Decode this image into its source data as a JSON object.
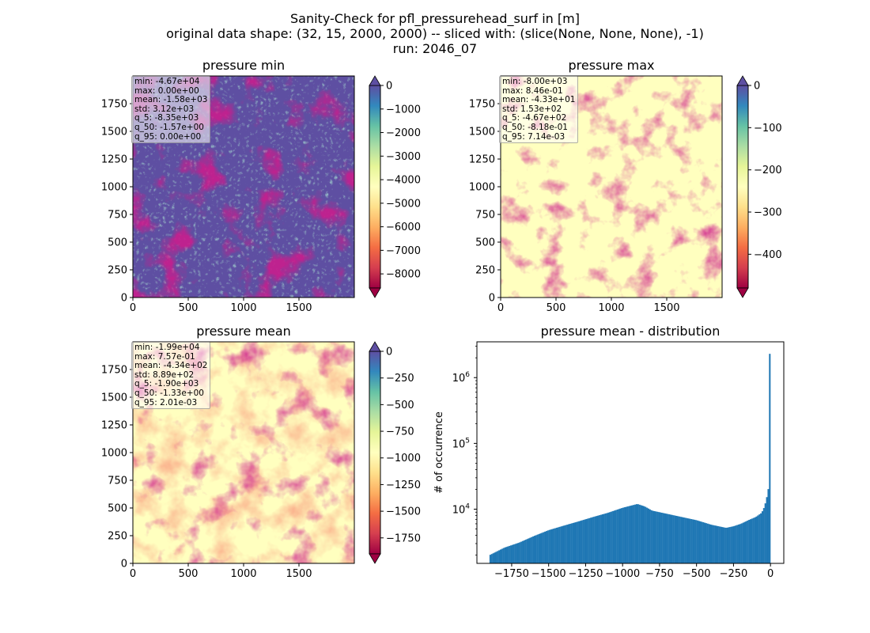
{
  "figure": {
    "title_lines": [
      "Sanity-Check for pfl_pressurehead_surf in [m]",
      "original data shape: (32, 15, 2000, 2000) -- sliced with: (slice(None, None, None), -1)",
      "run: 2046_07"
    ]
  },
  "chart_data": [
    {
      "type": "heatmap",
      "title": "pressure min",
      "xlim": [
        0,
        2000
      ],
      "ylim": [
        0,
        2000
      ],
      "xticks": [
        0,
        500,
        1000,
        1500
      ],
      "yticks": [
        0,
        250,
        500,
        750,
        1000,
        1250,
        1500,
        1750
      ],
      "colormap": "Spectral",
      "colorbar": {
        "range": [
          -8600,
          0
        ],
        "ticks": [
          0,
          -1000,
          -2000,
          -3000,
          -4000,
          -5000,
          -6000,
          -7000,
          -8000
        ],
        "extend": "both"
      },
      "stats": [
        "min: -4.67e+04",
        "max: 0.00e+00",
        "mean: -1.58e+03",
        "std: 3.12e+03",
        "q_5: -8.35e+03",
        "q_50: -1.57e+00",
        "q_95: 0.00e+00"
      ]
    },
    {
      "type": "heatmap",
      "title": "pressure max",
      "xlim": [
        0,
        2000
      ],
      "ylim": [
        0,
        2000
      ],
      "xticks": [
        0,
        500,
        1000,
        1500
      ],
      "yticks": [
        0,
        250,
        500,
        750,
        1000,
        1250,
        1500,
        1750
      ],
      "colormap": "Spectral",
      "colorbar": {
        "range": [
          -480,
          0
        ],
        "ticks": [
          0,
          -100,
          -200,
          -300,
          -400
        ],
        "extend": "both"
      },
      "stats": [
        "min: -8.00e+03",
        "max: 8.46e-01",
        "mean: -4.33e+01",
        "std: 1.53e+02",
        "q_5: -4.67e+02",
        "q_50: -8.18e-01",
        "q_95: 7.14e-03"
      ]
    },
    {
      "type": "heatmap",
      "title": "pressure mean",
      "xlim": [
        0,
        2000
      ],
      "ylim": [
        0,
        2000
      ],
      "xticks": [
        0,
        500,
        1000,
        1500
      ],
      "yticks": [
        0,
        250,
        500,
        750,
        1000,
        1250,
        1500,
        1750
      ],
      "colormap": "Spectral",
      "colorbar": {
        "range": [
          -1900,
          0
        ],
        "ticks": [
          0,
          -250,
          -500,
          -750,
          -1000,
          -1250,
          -1500,
          -1750
        ],
        "extend": "both"
      },
      "stats": [
        "min: -1.99e+04",
        "max: 7.57e-01",
        "mean: -4.34e+02",
        "std: 8.89e+02",
        "q_5: -1.90e+03",
        "q_50: -1.33e+00",
        "q_95: 2.01e-03"
      ]
    },
    {
      "type": "bar",
      "title": "pressure mean - distribution",
      "ylabel": "# of occurrence",
      "xlabel": "",
      "yscale": "log",
      "xlim": [
        -1985,
        90
      ],
      "ylim": [
        1500,
        3500000
      ],
      "xticks": [
        -1750,
        -1500,
        -1250,
        -1000,
        -750,
        -500,
        -250,
        0
      ],
      "xtick_labels": [
        "−1750",
        "−1500",
        "−1250",
        "−1000",
        "−750",
        "−500",
        "−250",
        "0"
      ],
      "yticks": [
        10000,
        100000,
        1000000
      ],
      "color": "#1f77b4",
      "bin_edges_range": [
        -1900,
        0
      ],
      "bin_width": 10,
      "profile": [
        [
          -1900,
          2000
        ],
        [
          -1800,
          2600
        ],
        [
          -1700,
          3100
        ],
        [
          -1600,
          3900
        ],
        [
          -1500,
          4800
        ],
        [
          -1400,
          5600
        ],
        [
          -1300,
          6500
        ],
        [
          -1200,
          7600
        ],
        [
          -1100,
          8800
        ],
        [
          -1000,
          10500
        ],
        [
          -900,
          12000
        ],
        [
          -850,
          11000
        ],
        [
          -800,
          9500
        ],
        [
          -700,
          8500
        ],
        [
          -600,
          7600
        ],
        [
          -500,
          6800
        ],
        [
          -400,
          5800
        ],
        [
          -300,
          5200
        ],
        [
          -250,
          5500
        ],
        [
          -200,
          6000
        ],
        [
          -150,
          6800
        ],
        [
          -100,
          7600
        ],
        [
          -60,
          8800
        ],
        [
          -40,
          11000
        ],
        [
          -20,
          17000
        ],
        [
          -10,
          24000
        ],
        [
          0,
          2300000
        ]
      ]
    }
  ]
}
